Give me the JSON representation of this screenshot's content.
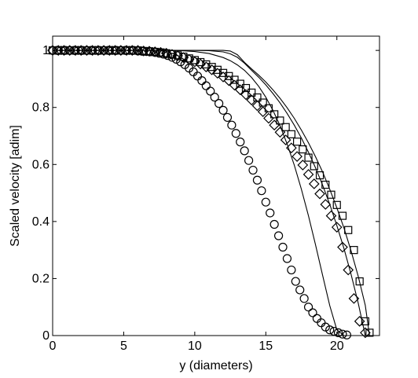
{
  "chart_data": {
    "type": "scatter",
    "title": "",
    "xlabel": "y (diameters)",
    "ylabel": "Scaled velocity [adim]",
    "xlim": [
      0,
      23
    ],
    "ylim": [
      0,
      1.05
    ],
    "xticks": [
      0,
      5,
      10,
      15,
      20
    ],
    "yticks": [
      0,
      0.2,
      0.4,
      0.6,
      0.8,
      1
    ],
    "xtick_labels": [
      "0",
      "5",
      "10",
      "15",
      "20"
    ],
    "ytick_labels": [
      "0",
      "0.2",
      "0.4",
      "0.6",
      "0.8",
      "1"
    ],
    "grid": false,
    "legend": "none",
    "series": [
      {
        "marker": "circle",
        "x": [
          0,
          0.3,
          0.6,
          0.9,
          1.2,
          1.5,
          1.8,
          2.1,
          2.4,
          2.7,
          3,
          3.3,
          3.6,
          3.9,
          4.2,
          4.5,
          4.8,
          5.1,
          5.4,
          5.7,
          6,
          6.3,
          6.6,
          6.9,
          7.2,
          7.5,
          7.8,
          8.1,
          8.4,
          8.7,
          9,
          9.3,
          9.6,
          9.9,
          10.2,
          10.5,
          10.8,
          11.1,
          11.4,
          11.7,
          12,
          12.3,
          12.6,
          12.9,
          13.2,
          13.5,
          13.8,
          14.1,
          14.4,
          14.7,
          15,
          15.3,
          15.6,
          15.9,
          16.2,
          16.5,
          16.8,
          17.1,
          17.4,
          17.7,
          18,
          18.3,
          18.6,
          18.9,
          19.2,
          19.5,
          19.8,
          20.1,
          20.4,
          20.7
        ],
        "y": [
          1,
          1,
          1,
          1,
          1,
          1,
          1,
          1,
          1,
          1,
          1,
          1,
          1,
          1,
          1,
          1,
          1,
          1,
          1,
          1,
          0.998,
          0.997,
          0.996,
          0.995,
          0.993,
          0.99,
          0.987,
          0.982,
          0.976,
          0.969,
          0.96,
          0.95,
          0.938,
          0.925,
          0.91,
          0.894,
          0.876,
          0.857,
          0.836,
          0.814,
          0.79,
          0.765,
          0.738,
          0.709,
          0.679,
          0.648,
          0.614,
          0.58,
          0.545,
          0.508,
          0.468,
          0.43,
          0.39,
          0.35,
          0.31,
          0.27,
          0.23,
          0.19,
          0.16,
          0.13,
          0.1,
          0.08,
          0.06,
          0.045,
          0.03,
          0.02,
          0.015,
          0.01,
          0.005,
          0.002
        ]
      },
      {
        "marker": "diamond",
        "x": [
          0,
          0.4,
          0.8,
          1.2,
          1.6,
          2,
          2.4,
          2.8,
          3.2,
          3.6,
          4,
          4.4,
          4.8,
          5.2,
          5.6,
          6,
          6.4,
          6.8,
          7.2,
          7.6,
          8,
          8.4,
          8.8,
          9.2,
          9.6,
          10,
          10.4,
          10.8,
          11.2,
          11.6,
          12,
          12.4,
          12.8,
          13.2,
          13.6,
          14,
          14.4,
          14.8,
          15.2,
          15.6,
          16,
          16.4,
          16.8,
          17.2,
          17.6,
          18,
          18.4,
          18.8,
          19.2,
          19.6,
          20,
          20.4,
          20.8,
          21.2,
          21.6,
          22
        ],
        "y": [
          1,
          1,
          1,
          1,
          1,
          1,
          1,
          1,
          1,
          1,
          1,
          1,
          1,
          1,
          1,
          1,
          0.998,
          0.997,
          0.995,
          0.993,
          0.99,
          0.986,
          0.981,
          0.975,
          0.968,
          0.96,
          0.952,
          0.942,
          0.932,
          0.92,
          0.907,
          0.894,
          0.878,
          0.862,
          0.845,
          0.826,
          0.806,
          0.785,
          0.762,
          0.738,
          0.713,
          0.686,
          0.658,
          0.628,
          0.598,
          0.565,
          0.532,
          0.497,
          0.46,
          0.42,
          0.38,
          0.31,
          0.23,
          0.13,
          0.05,
          0.01
        ]
      },
      {
        "marker": "square",
        "x": [
          0,
          0.4,
          0.8,
          1.2,
          1.6,
          2,
          2.4,
          2.8,
          3.2,
          3.6,
          4,
          4.4,
          4.8,
          5.2,
          5.6,
          6,
          6.4,
          6.8,
          7.2,
          7.6,
          8,
          8.4,
          8.8,
          9.2,
          9.6,
          10,
          10.4,
          10.8,
          11.2,
          11.6,
          12,
          12.4,
          12.8,
          13.2,
          13.6,
          14,
          14.4,
          14.8,
          15.2,
          15.6,
          16,
          16.4,
          16.8,
          17.2,
          17.6,
          18,
          18.4,
          18.8,
          19.2,
          19.6,
          20,
          20.4,
          20.8,
          21.2,
          21.6,
          22,
          22.3
        ],
        "y": [
          1,
          1,
          1,
          1,
          1,
          1,
          1,
          1,
          1,
          1,
          1,
          1,
          1,
          1,
          1,
          1,
          0.998,
          0.997,
          0.995,
          0.993,
          0.99,
          0.987,
          0.983,
          0.978,
          0.972,
          0.966,
          0.959,
          0.951,
          0.942,
          0.932,
          0.921,
          0.91,
          0.897,
          0.883,
          0.868,
          0.852,
          0.835,
          0.817,
          0.797,
          0.776,
          0.754,
          0.731,
          0.706,
          0.68,
          0.653,
          0.624,
          0.594,
          0.562,
          0.529,
          0.494,
          0.458,
          0.42,
          0.37,
          0.3,
          0.19,
          0.05,
          0.01
        ]
      },
      {
        "marker": "line",
        "x": [
          0,
          1,
          2,
          3,
          4,
          5,
          6,
          7,
          8,
          9,
          10,
          11,
          12,
          12.5,
          13,
          13.5,
          14,
          14.5,
          15,
          15.5,
          16,
          16.5,
          17,
          17.5,
          18,
          18.5,
          19,
          19.5,
          20,
          20.5
        ],
        "y": [
          1,
          1,
          1,
          1,
          1,
          1,
          1,
          1,
          1,
          0.999,
          0.996,
          0.989,
          0.975,
          0.964,
          0.949,
          0.93,
          0.905,
          0.874,
          0.836,
          0.79,
          0.736,
          0.672,
          0.598,
          0.514,
          0.42,
          0.318,
          0.21,
          0.105,
          0.02,
          0
        ]
      },
      {
        "marker": "line",
        "x": [
          0,
          1,
          2,
          3,
          4,
          5,
          6,
          7,
          8,
          9,
          10,
          11,
          12,
          12.5,
          13,
          13.5,
          14,
          14.5,
          15,
          15.5,
          16,
          16.5,
          17,
          17.5,
          18,
          18.5,
          19,
          19.5,
          20,
          20.5,
          21,
          21.5,
          22
        ],
        "y": [
          1,
          1,
          1,
          1,
          1,
          1,
          1,
          1,
          1,
          1,
          1,
          0.999,
          0.995,
          0.988,
          0.976,
          0.955,
          0.93,
          0.906,
          0.879,
          0.849,
          0.816,
          0.779,
          0.738,
          0.693,
          0.643,
          0.588,
          0.527,
          0.46,
          0.386,
          0.305,
          0.215,
          0.114,
          0
        ]
      },
      {
        "marker": "line",
        "x": [
          0,
          1,
          2,
          3,
          4,
          5,
          6,
          7,
          8,
          9,
          10,
          11,
          12,
          12.5,
          13,
          13.5,
          14,
          14.5,
          15,
          15.5,
          16,
          16.5,
          17,
          17.5,
          18,
          18.5,
          19,
          19.5,
          20,
          20.5,
          21,
          21.5,
          22,
          22.3
        ],
        "y": [
          1,
          1,
          1,
          1,
          1,
          1,
          1,
          1,
          1,
          1,
          1,
          1,
          1,
          0.998,
          0.985,
          0.958,
          0.935,
          0.913,
          0.889,
          0.862,
          0.832,
          0.799,
          0.762,
          0.721,
          0.676,
          0.627,
          0.573,
          0.513,
          0.448,
          0.377,
          0.297,
          0.208,
          0.106,
          0
        ]
      }
    ]
  }
}
